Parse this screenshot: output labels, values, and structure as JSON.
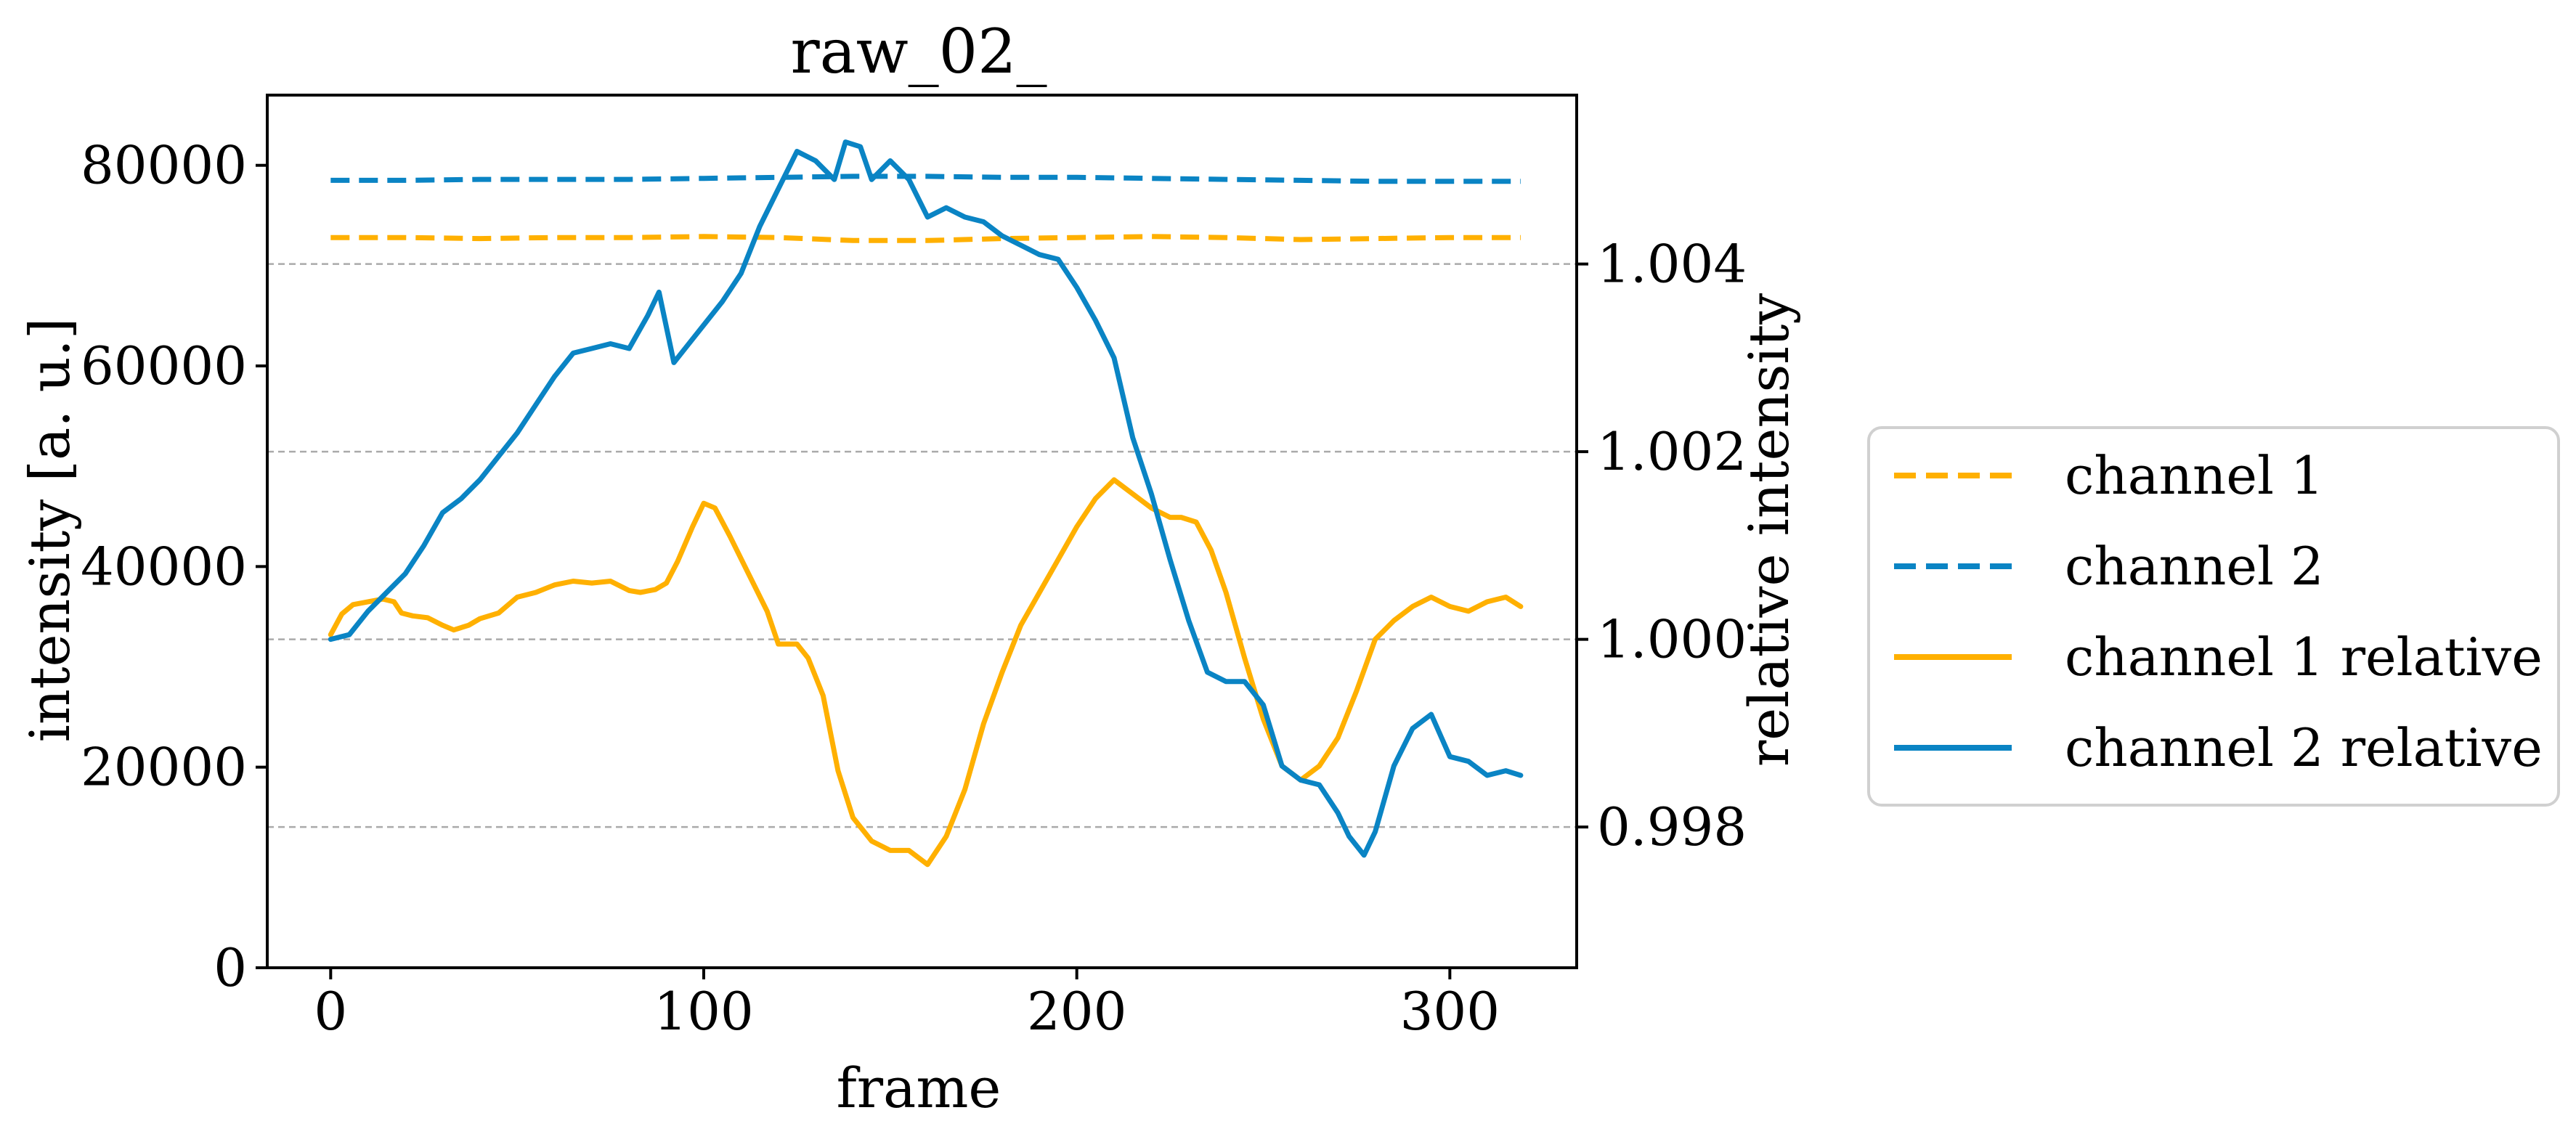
{
  "chart_data": {
    "type": "line",
    "title": "raw_02_",
    "xlabel": "frame",
    "ylabel": "intensity [a. u.]",
    "ylabel_right": "relative intensity",
    "xlim": [
      -17,
      334
    ],
    "ylim": [
      0,
      87000
    ],
    "ylim_right": [
      0.9965,
      1.0058
    ],
    "x_ticks": [
      0,
      100,
      200,
      300
    ],
    "y_ticks": [
      0,
      20000,
      40000,
      60000,
      80000
    ],
    "y_ticks_right": [
      0.998,
      1.0,
      1.002,
      1.004
    ],
    "x_tick_labels": [
      "0",
      "100",
      "200",
      "300"
    ],
    "y_tick_labels": [
      "0",
      "20000",
      "40000",
      "60000",
      "80000"
    ],
    "y_tick_labels_right": [
      "0.998",
      "1.000",
      "1.002",
      "1.004"
    ],
    "grid": "horizontal dashed at right-axis ticks",
    "legend_position": "right, outside plot",
    "colors": {
      "channel1": "#FFB000",
      "channel2": "#0A84C4",
      "grid": "#aaaaaa"
    },
    "series": [
      {
        "name": "channel 1",
        "axis": "left",
        "style": "dashed",
        "color": "#FFB000",
        "x": [
          0,
          20,
          40,
          60,
          80,
          100,
          120,
          140,
          160,
          180,
          200,
          220,
          240,
          260,
          280,
          300,
          319
        ],
        "y": [
          72800,
          72800,
          72700,
          72800,
          72800,
          72900,
          72800,
          72500,
          72500,
          72700,
          72800,
          72900,
          72800,
          72600,
          72700,
          72800,
          72800
        ]
      },
      {
        "name": "channel 2",
        "axis": "left",
        "style": "dashed",
        "color": "#0A84C4",
        "x": [
          0,
          20,
          40,
          60,
          80,
          100,
          120,
          140,
          160,
          180,
          200,
          220,
          240,
          260,
          280,
          300,
          319
        ],
        "y": [
          78500,
          78500,
          78600,
          78600,
          78600,
          78700,
          78800,
          78900,
          78900,
          78800,
          78800,
          78700,
          78600,
          78500,
          78400,
          78400,
          78400
        ]
      },
      {
        "name": "channel 1 relative",
        "axis": "right",
        "style": "solid",
        "color": "#FFB000",
        "x": [
          0,
          3,
          6,
          10,
          14,
          17,
          19,
          22,
          26,
          30,
          33,
          37,
          40,
          45,
          50,
          55,
          60,
          65,
          70,
          75,
          80,
          83,
          87,
          90,
          93,
          97,
          100,
          103,
          107,
          112,
          117,
          120,
          125,
          128,
          132,
          136,
          140,
          145,
          150,
          155,
          160,
          165,
          170,
          175,
          180,
          185,
          190,
          195,
          200,
          205,
          210,
          215,
          220,
          225,
          228,
          232,
          236,
          240,
          245,
          250,
          255,
          260,
          265,
          270,
          275,
          280,
          285,
          290,
          295,
          300,
          305,
          310,
          315,
          319
        ],
        "y": [
          1.00005,
          1.00027,
          1.00037,
          1.0004,
          1.00043,
          1.0004,
          1.00028,
          1.00025,
          1.00023,
          1.00015,
          1.0001,
          1.00015,
          1.00022,
          1.00028,
          1.00045,
          1.0005,
          1.00058,
          1.00062,
          1.0006,
          1.00062,
          1.00052,
          1.0005,
          1.00053,
          1.0006,
          1.00083,
          1.0012,
          1.00145,
          1.0014,
          1.0011,
          1.0007,
          1.0003,
          0.99995,
          0.99995,
          0.9998,
          0.9994,
          0.9986,
          0.9981,
          0.99785,
          0.99775,
          0.99775,
          0.9976,
          0.9979,
          0.9984,
          0.9991,
          0.99965,
          1.00015,
          1.0005,
          1.00085,
          1.0012,
          1.0015,
          1.0017,
          1.00155,
          1.0014,
          1.0013,
          1.0013,
          1.00125,
          1.00095,
          1.0005,
          0.9998,
          0.99915,
          0.99865,
          0.9985,
          0.99865,
          0.99895,
          0.99945,
          1.0,
          1.0002,
          1.00035,
          1.00045,
          1.00035,
          1.0003,
          1.0004,
          1.00045,
          1.00035
        ]
      },
      {
        "name": "channel 2 relative",
        "axis": "right",
        "style": "solid",
        "color": "#0A84C4",
        "x": [
          0,
          5,
          10,
          15,
          20,
          25,
          30,
          35,
          40,
          45,
          50,
          55,
          60,
          65,
          70,
          75,
          80,
          85,
          88,
          92,
          95,
          100,
          105,
          110,
          115,
          120,
          125,
          130,
          135,
          138,
          142,
          145,
          150,
          155,
          160,
          165,
          170,
          175,
          180,
          185,
          190,
          195,
          200,
          205,
          210,
          215,
          220,
          225,
          230,
          235,
          240,
          245,
          250,
          255,
          260,
          265,
          270,
          273,
          277,
          280,
          285,
          290,
          295,
          300,
          305,
          310,
          315,
          319
        ],
        "y": [
          1.0,
          1.00005,
          1.0003,
          1.0005,
          1.0007,
          1.001,
          1.00135,
          1.0015,
          1.0017,
          1.00195,
          1.0022,
          1.0025,
          1.0028,
          1.00305,
          1.0031,
          1.00315,
          1.0031,
          1.00345,
          1.0037,
          1.00295,
          1.0031,
          1.00335,
          1.0036,
          1.0039,
          1.0044,
          1.0048,
          1.0052,
          1.0051,
          1.0049,
          1.0053,
          1.00525,
          1.0049,
          1.0051,
          1.0049,
          1.0045,
          1.0046,
          1.0045,
          1.00445,
          1.0043,
          1.0042,
          1.0041,
          1.00405,
          1.00375,
          1.0034,
          1.003,
          1.00215,
          1.00155,
          1.00085,
          1.0002,
          0.99965,
          0.99955,
          0.99955,
          0.9993,
          0.99865,
          0.9985,
          0.99845,
          0.99815,
          0.9979,
          0.9977,
          0.99795,
          0.99865,
          0.99905,
          0.9992,
          0.99875,
          0.9987,
          0.99855,
          0.9986,
          0.99855
        ]
      }
    ]
  }
}
